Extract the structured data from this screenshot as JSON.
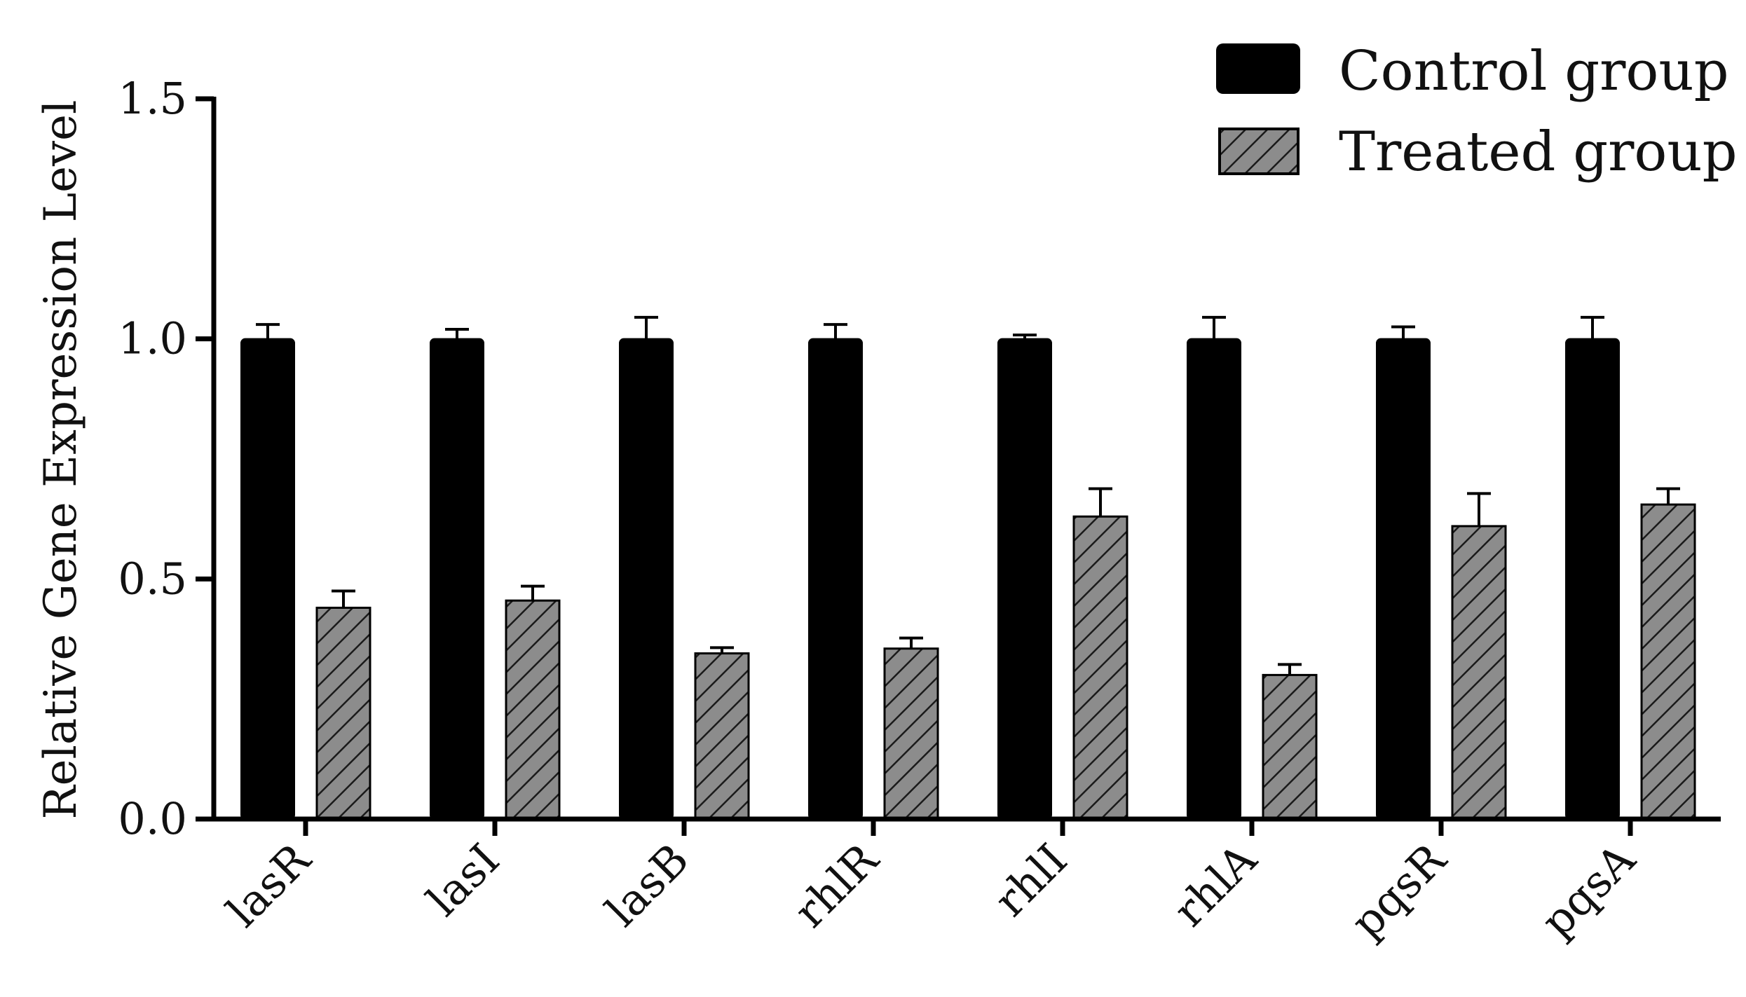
{
  "chart_data": {
    "type": "bar",
    "title": "",
    "xlabel": "",
    "ylabel": "Relative Gene Expression Level",
    "ylim": [
      0,
      1.5
    ],
    "yticks": [
      "0.0",
      "0.5",
      "1.0",
      "1.5"
    ],
    "grid": false,
    "legend_position": "top-right",
    "categories": [
      "lasR",
      "lasI",
      "lasB",
      "rhlR",
      "rhlI",
      "rhlA",
      "pqsR",
      "pqsA"
    ],
    "series": [
      {
        "name": "Control group",
        "pattern": "solid",
        "color": "#000000",
        "values": [
          1.0,
          1.0,
          1.0,
          1.0,
          1.0,
          1.0,
          1.0,
          1.0
        ],
        "errors": [
          0.03,
          0.02,
          0.045,
          0.03,
          0.008,
          0.045,
          0.025,
          0.045
        ]
      },
      {
        "name": "Treated group",
        "pattern": "hatched",
        "color": "#8c8c8c",
        "values": [
          0.44,
          0.455,
          0.345,
          0.355,
          0.63,
          0.3,
          0.61,
          0.655
        ],
        "errors": [
          0.035,
          0.03,
          0.012,
          0.022,
          0.058,
          0.022,
          0.068,
          0.033
        ]
      }
    ]
  }
}
